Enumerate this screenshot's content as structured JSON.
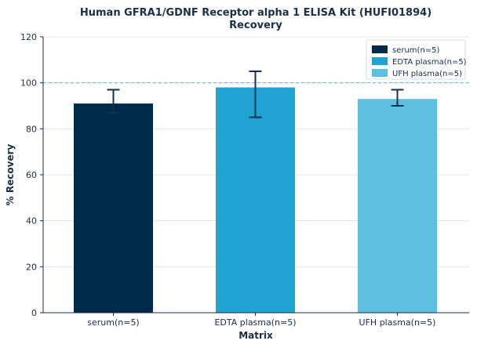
{
  "chart_data": {
    "type": "bar",
    "title": "Human GFRA1/GDNF Receptor alpha 1 ELISA Kit (HUFI01894)",
    "subtitle": "Recovery",
    "xlabel": "Matrix",
    "ylabel": "% Recovery",
    "ylim": [
      0,
      120
    ],
    "yticks": [
      0,
      20,
      40,
      60,
      80,
      100,
      120
    ],
    "grid": "horizontal",
    "legend_position": "top-right",
    "reference_line": 100,
    "categories": [
      "serum(n=5)",
      "EDTA plasma(n=5)",
      "UFH plasma(n=5)"
    ],
    "values": [
      91,
      98,
      93
    ],
    "error_low": [
      87,
      85,
      90
    ],
    "error_high": [
      97,
      105,
      97
    ],
    "colors": [
      "#002a4a",
      "#1ea3d3",
      "#5ebfe0"
    ],
    "legend": [
      "serum(n=5)",
      "EDTA plasma(n=5)",
      "UFH plasma(n=5)"
    ]
  }
}
